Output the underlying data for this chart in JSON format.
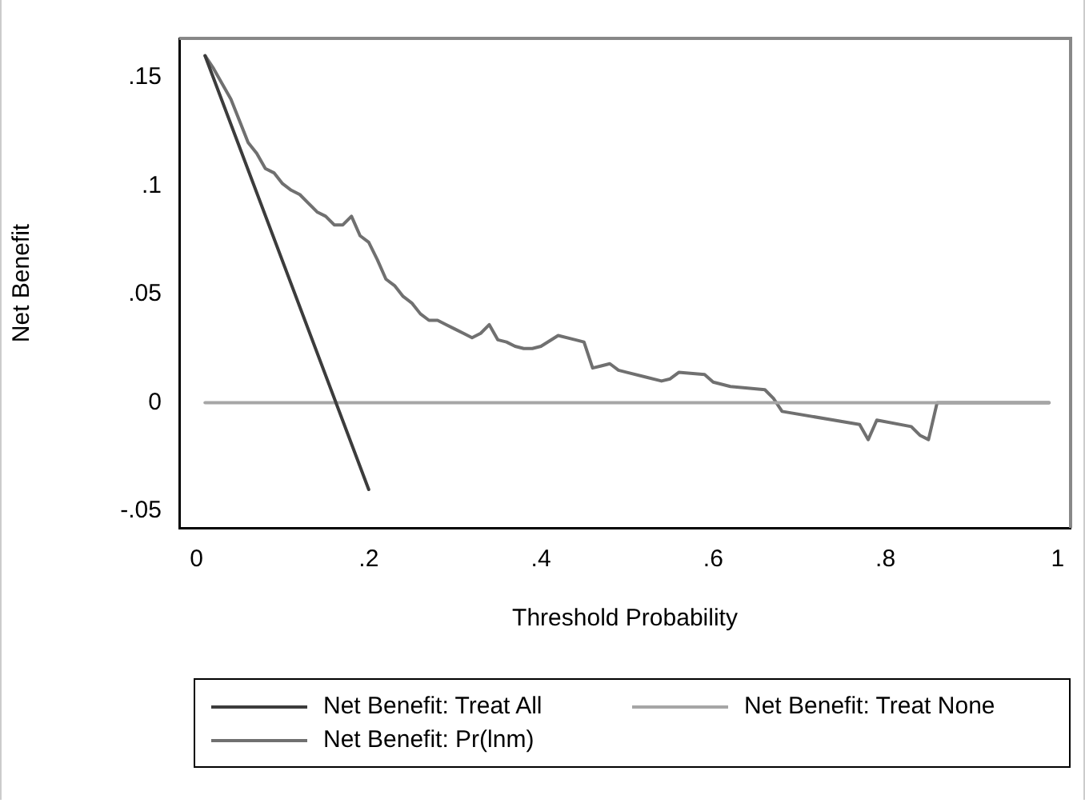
{
  "chart_data": {
    "type": "line",
    "xlabel": "Threshold Probability",
    "ylabel": "Net Benefit",
    "xlim": [
      -0.02,
      1.015
    ],
    "ylim": [
      -0.0577,
      0.168
    ],
    "xticks": [
      0,
      {
        "value": 0.2,
        "label": ".2"
      },
      {
        "value": 0.4,
        "label": ".4"
      },
      {
        "value": 0.6,
        "label": ".6"
      },
      {
        "value": 0.8,
        "label": ".8"
      },
      1
    ],
    "yticks": [
      {
        "value": -0.05,
        "label": "-.05"
      },
      0,
      {
        "value": 0.05,
        "label": ".05"
      },
      {
        "value": 0.1,
        "label": ".1"
      },
      {
        "value": 0.15,
        "label": ".15"
      }
    ],
    "grid": false,
    "legend": "bottom",
    "marker": "none",
    "line_style": "solid",
    "series": [
      {
        "name": "Net Benefit: Treat All",
        "color": "#3c3c3c",
        "x": [
          0.01,
          0.2
        ],
        "values": [
          0.16,
          -0.04
        ]
      },
      {
        "name": "Net Benefit: Treat None",
        "color": "#a6a6a6",
        "x": [
          0.01,
          0.99
        ],
        "values": [
          0,
          0
        ]
      },
      {
        "name": "Net Benefit: Pr(lnm)",
        "color": "#707070",
        "x": [
          0.01,
          0.02,
          0.03,
          0.04,
          0.05,
          0.06,
          0.07,
          0.08,
          0.09,
          0.1,
          0.11,
          0.12,
          0.13,
          0.14,
          0.15,
          0.16,
          0.17,
          0.18,
          0.19,
          0.2,
          0.21,
          0.22,
          0.23,
          0.24,
          0.25,
          0.26,
          0.27,
          0.28,
          0.29,
          0.3,
          0.31,
          0.32,
          0.33,
          0.34,
          0.35,
          0.36,
          0.37,
          0.38,
          0.39,
          0.4,
          0.42,
          0.44,
          0.45,
          0.46,
          0.47,
          0.48,
          0.49,
          0.5,
          0.52,
          0.54,
          0.55,
          0.56,
          0.59,
          0.6,
          0.62,
          0.66,
          0.67,
          0.68,
          0.77,
          0.78,
          0.79,
          0.83,
          0.84,
          0.85,
          0.86,
          0.99
        ],
        "values": [
          0.16,
          0.154,
          0.147,
          0.14,
          0.13,
          0.12,
          0.115,
          0.108,
          0.106,
          0.101,
          0.098,
          0.096,
          0.092,
          0.088,
          0.086,
          0.082,
          0.082,
          0.086,
          0.077,
          0.074,
          0.066,
          0.057,
          0.054,
          0.049,
          0.046,
          0.041,
          0.038,
          0.038,
          0.036,
          0.034,
          0.032,
          0.03,
          0.032,
          0.036,
          0.029,
          0.028,
          0.026,
          0.025,
          0.025,
          0.026,
          0.031,
          0.029,
          0.028,
          0.016,
          0.017,
          0.018,
          0.015,
          0.014,
          0.012,
          0.01,
          0.011,
          0.014,
          0.013,
          0.0095,
          0.0075,
          0.006,
          0.002,
          -0.004,
          -0.01,
          -0.017,
          -0.008,
          -0.011,
          -0.015,
          -0.017,
          0,
          0
        ]
      }
    ]
  }
}
